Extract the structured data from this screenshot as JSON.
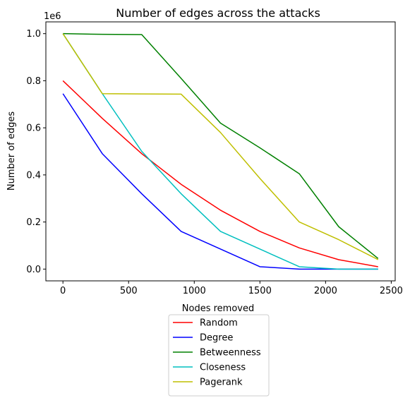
{
  "chart_data": {
    "type": "line",
    "title": "Number of edges across the attacks",
    "xlabel": "Nodes removed",
    "ylabel": "Number of edges",
    "y_offset_label": "1e6",
    "xlim": [
      -130,
      2530
    ],
    "ylim": [
      -0.05,
      1.05
    ],
    "xticks": [
      0,
      500,
      1000,
      1500,
      2000,
      2500
    ],
    "xtick_labels": [
      "0",
      "500",
      "1000",
      "1500",
      "2000",
      "2500"
    ],
    "yticks": [
      0.0,
      0.2,
      0.4,
      0.6,
      0.8,
      1.0
    ],
    "ytick_labels": [
      "0.0",
      "0.2",
      "0.4",
      "0.6",
      "0.8",
      "1.0"
    ],
    "grid": false,
    "legend_position": "below plot",
    "x": [
      0,
      300,
      600,
      900,
      1200,
      1500,
      1800,
      2100,
      2400
    ],
    "series": [
      {
        "name": "Random",
        "color": "#ff0000",
        "values": [
          0.8,
          0.64,
          0.49,
          0.36,
          0.25,
          0.16,
          0.09,
          0.04,
          0.01
        ]
      },
      {
        "name": "Degree",
        "color": "#0000ff",
        "values": [
          0.745,
          0.49,
          0.32,
          0.16,
          0.085,
          0.01,
          0.0,
          0.0,
          0.0
        ]
      },
      {
        "name": "Betweenness",
        "color": "#008000",
        "values": [
          1.0,
          0.997,
          0.996,
          0.81,
          0.62,
          0.515,
          0.405,
          0.18,
          0.045
        ]
      },
      {
        "name": "Closeness",
        "color": "#00bfbf",
        "values": [
          1.0,
          0.745,
          0.5,
          0.32,
          0.16,
          0.085,
          0.01,
          0.0,
          0.0
        ]
      },
      {
        "name": "Pagerank",
        "color": "#bfbf00",
        "values": [
          1.0,
          0.745,
          0.744,
          0.743,
          0.58,
          0.385,
          0.2,
          0.125,
          0.04
        ]
      }
    ]
  }
}
